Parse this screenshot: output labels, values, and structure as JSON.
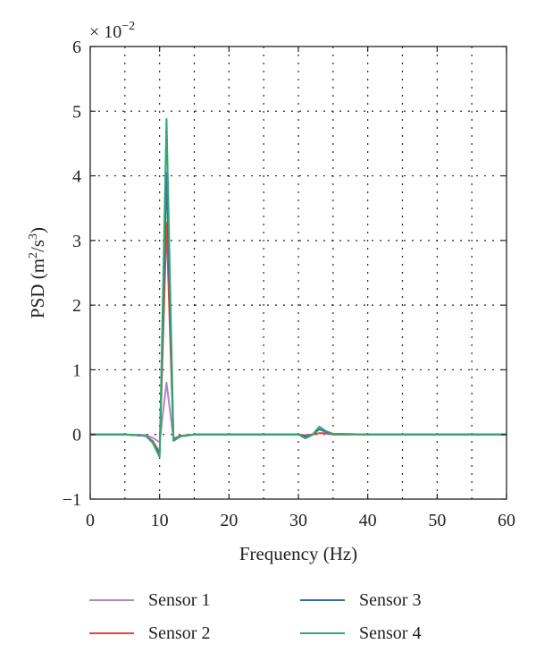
{
  "chart_data": {
    "type": "line",
    "xlabel": "Frequency (Hz)",
    "ylabel_text": "PSD (m",
    "ylabel_sup1": "2",
    "ylabel_mid": "/s",
    "ylabel_sup2": "3",
    "ylabel_end": ")",
    "exponent_prefix": "× 10",
    "exponent_power": "−2",
    "xlim": [
      0,
      60
    ],
    "ylim": [
      -1,
      6
    ],
    "xticks": [
      0,
      10,
      20,
      30,
      40,
      50,
      60
    ],
    "xtick_labels": [
      "0",
      "10",
      "20",
      "30",
      "40",
      "50",
      "60"
    ],
    "yticks": [
      -1,
      0,
      1,
      2,
      3,
      4,
      5,
      6
    ],
    "ytick_labels": [
      "−1",
      "0",
      "1",
      "2",
      "3",
      "4",
      "5",
      "6"
    ],
    "x_grid": [
      5,
      10,
      15,
      20,
      25,
      30,
      35,
      40,
      45,
      50,
      55
    ],
    "y_grid": [
      0,
      1,
      2,
      3,
      4,
      5
    ],
    "grid": true,
    "legend_position": "bottom",
    "series": [
      {
        "name": "Sensor 1",
        "color": "#a78bc7",
        "x": [
          0,
          5,
          8,
          9,
          10,
          11,
          12,
          13,
          15,
          20,
          25,
          30,
          31,
          32,
          33,
          34,
          35,
          40,
          50,
          60
        ],
        "y": [
          0,
          0,
          -0.01,
          -0.05,
          -0.12,
          0.8,
          -0.06,
          -0.02,
          0,
          0,
          0,
          0,
          -0.01,
          0,
          0.02,
          0.01,
          0,
          0,
          0,
          0
        ]
      },
      {
        "name": "Sensor 2",
        "color": "#e8453c",
        "x": [
          0,
          5,
          8,
          9,
          10,
          11,
          12,
          13,
          15,
          20,
          25,
          30,
          31,
          32,
          33,
          34,
          35,
          40,
          50,
          60
        ],
        "y": [
          0,
          0,
          -0.02,
          -0.1,
          -0.28,
          3.27,
          -0.08,
          -0.02,
          0,
          0,
          0,
          0,
          -0.02,
          0,
          0.02,
          0.02,
          0,
          0,
          0,
          0
        ]
      },
      {
        "name": "Sensor 3",
        "color": "#3c6aa0",
        "x": [
          0,
          5,
          8,
          9,
          10,
          11,
          12,
          13,
          15,
          20,
          25,
          30,
          31,
          32,
          33,
          34,
          35,
          40,
          50,
          60
        ],
        "y": [
          0,
          0,
          -0.02,
          -0.12,
          -0.3,
          4.05,
          -0.09,
          -0.03,
          0,
          0,
          0,
          0,
          -0.04,
          -0.01,
          0.08,
          0.04,
          0.01,
          0,
          0,
          0
        ]
      },
      {
        "name": "Sensor 4",
        "color": "#2eaa6e",
        "x": [
          0,
          5,
          8,
          9,
          10,
          11,
          12,
          13,
          15,
          20,
          25,
          30,
          31,
          32,
          33,
          34,
          35,
          40,
          50,
          60
        ],
        "y": [
          0,
          0,
          -0.02,
          -0.13,
          -0.35,
          4.88,
          -0.1,
          -0.03,
          0,
          0,
          0,
          0,
          -0.06,
          -0.01,
          0.12,
          0.05,
          0.01,
          0,
          0,
          0
        ]
      }
    ]
  }
}
